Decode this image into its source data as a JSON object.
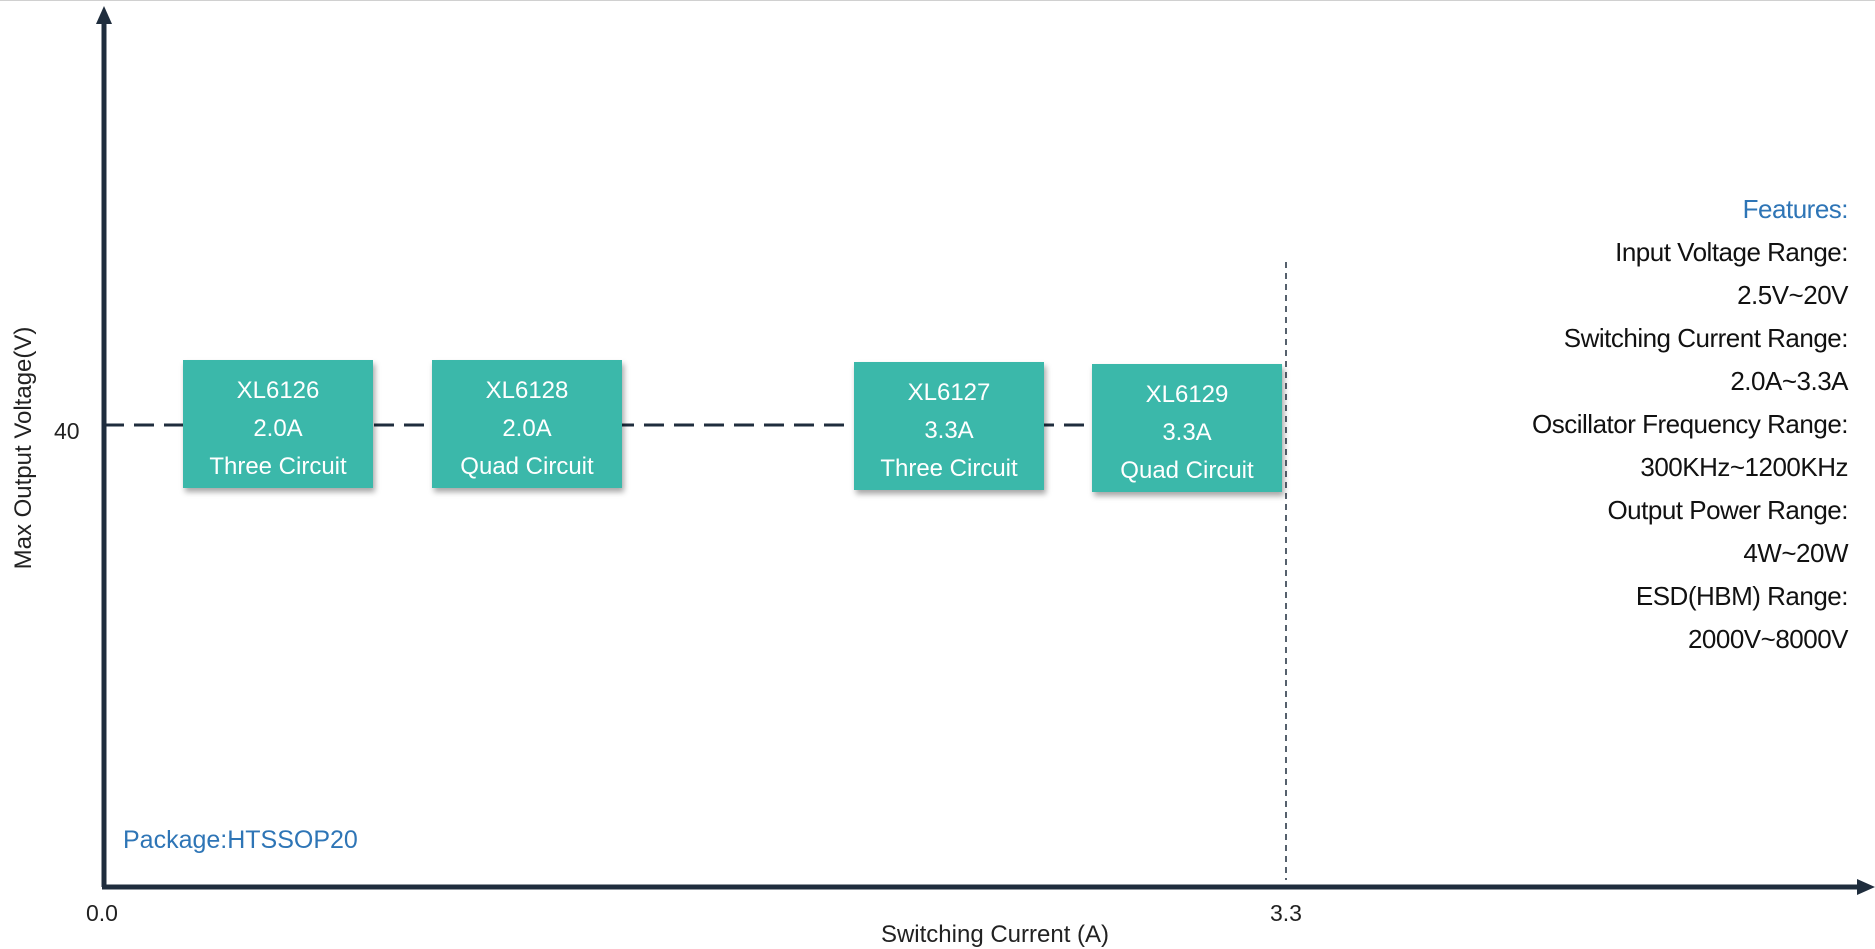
{
  "chart_data": {
    "type": "scatter",
    "title": "",
    "xlabel": "Switching Current (A)",
    "ylabel": "Max Output Voltage(V)",
    "x_ticks": [
      "0.0",
      "3.3"
    ],
    "y_ticks": [
      "40"
    ],
    "reference_line_y": 40,
    "reference_line_x": 3.3,
    "items": [
      {
        "name": "XL6126",
        "current": "2.0A",
        "circuit": "Three Circuit",
        "y": 40
      },
      {
        "name": "XL6128",
        "current": "2.0A",
        "circuit": "Quad Circuit",
        "y": 40
      },
      {
        "name": "XL6127",
        "current": "3.3A",
        "circuit": "Three Circuit",
        "y": 40
      },
      {
        "name": "XL6129",
        "current": "3.3A",
        "circuit": "Quad Circuit",
        "y": 40
      }
    ],
    "box_color": "#3ab8aa",
    "axis_color": "#1f2d3d"
  },
  "features": {
    "heading": "Features:",
    "lines": [
      "Input Voltage Range:",
      "2.5V~20V",
      "Switching Current Range:",
      "2.0A~3.3A",
      "Oscillator Frequency Range:",
      "300KHz~1200KHz",
      "Output Power Range:",
      "4W~20W",
      "ESD(HBM) Range:",
      "2000V~8000V"
    ]
  },
  "package_label": "Package:HTSSOP20"
}
